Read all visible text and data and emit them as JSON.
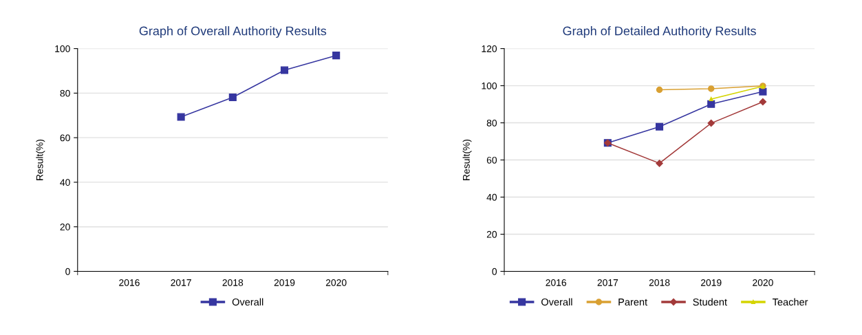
{
  "chart_data": [
    {
      "type": "line",
      "title": "Graph of Overall Authority Results",
      "ylabel": "Result(%)",
      "categories": [
        "2016",
        "2017",
        "2018",
        "2019",
        "2020"
      ],
      "ylim": [
        0,
        100
      ],
      "yticks": [
        0,
        20,
        40,
        60,
        80,
        100
      ],
      "grid": "y",
      "legend": "bottom",
      "series": [
        {
          "name": "Overall",
          "color": "#3636a0",
          "marker": "square",
          "values": [
            null,
            69.3,
            78.1,
            90.3,
            96.9
          ]
        }
      ]
    },
    {
      "type": "line",
      "title": "Graph of Detailed Authority Results",
      "ylabel": "Result(%)",
      "categories": [
        "2016",
        "2017",
        "2018",
        "2019",
        "2020"
      ],
      "ylim": [
        0,
        120
      ],
      "yticks": [
        0,
        20,
        40,
        60,
        80,
        100,
        120
      ],
      "grid": "y",
      "legend": "bottom",
      "series": [
        {
          "name": "Overall",
          "color": "#3636a0",
          "marker": "square",
          "values": [
            null,
            69.2,
            77.9,
            90.1,
            96.8
          ]
        },
        {
          "name": "Parent",
          "color": "#d9a032",
          "marker": "circle",
          "values": [
            null,
            null,
            97.8,
            98.4,
            99.9
          ]
        },
        {
          "name": "Student",
          "color": "#a33a3a",
          "marker": "diamond",
          "values": [
            null,
            69.2,
            58.2,
            79.8,
            91.3
          ]
        },
        {
          "name": "Teacher",
          "color": "#d4d400",
          "marker": "triangle",
          "values": [
            null,
            null,
            null,
            92.8,
            99.7
          ]
        }
      ]
    }
  ]
}
